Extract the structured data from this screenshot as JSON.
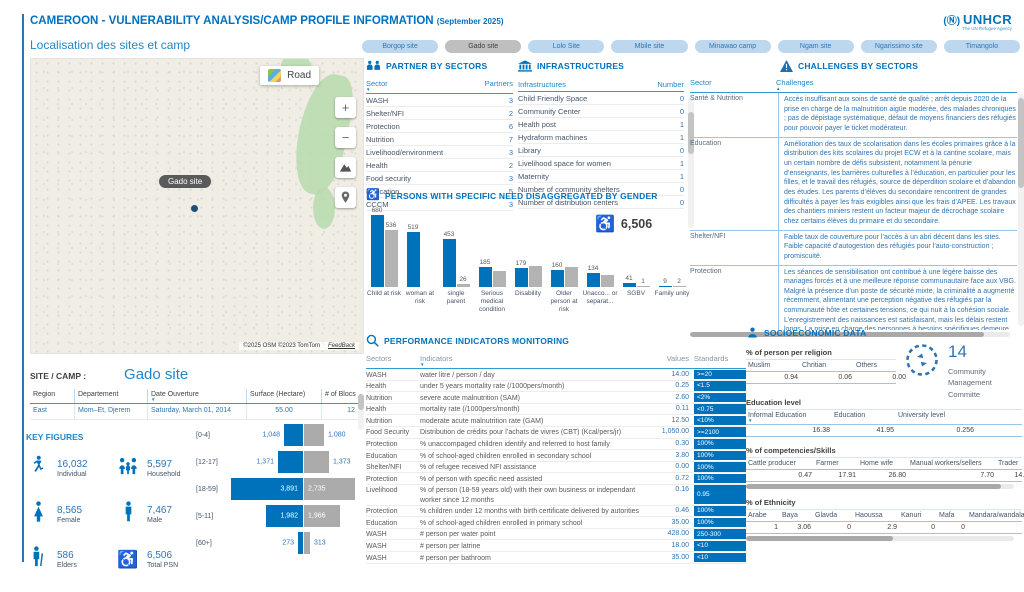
{
  "header": {
    "title": "CAMEROON - VULNERABILITY ANALYSIS/CAMP PROFILE INFORMATION",
    "subtitle": "(September 2025)",
    "logo_emblem": "(Ⓝ)",
    "logo_text": "UNHCR",
    "logo_tagline": "The UN Refugee Agency"
  },
  "loc_title": "Localisation des sites et camp",
  "tabs": {
    "active_index": 1,
    "items": [
      "Borgop site",
      "Gado site",
      "Lolo Site",
      "Mbile site",
      "Minawao camp",
      "Ngam site",
      "Ngarissimo site",
      "Timangolo"
    ]
  },
  "map": {
    "layer_label": "Road",
    "site_label": "Gado site",
    "attribution": "©2025 OSM ©2023 TomTom",
    "feedback": "FeedBack",
    "zoom_in": "+",
    "zoom_out": "−"
  },
  "partners": {
    "title": "PARTNER BY SECTORS",
    "col_sector": "Sector",
    "col_partners": "Partners",
    "rows": [
      [
        "WASH",
        "3"
      ],
      [
        "Shelter/NFI",
        "2"
      ],
      [
        "Protection",
        "6"
      ],
      [
        "Nutrition",
        "7"
      ],
      [
        "Livelihood/environment",
        "3"
      ],
      [
        "Health",
        "2"
      ],
      [
        "Food security",
        "3"
      ],
      [
        "Education",
        "5"
      ],
      [
        "CCCM",
        "3"
      ]
    ]
  },
  "infra": {
    "title": "INFRASTRUCTURES",
    "col_name": "Infrastructures",
    "col_number": "Number",
    "rows": [
      [
        "Child Friendly Space",
        "0"
      ],
      [
        "Community Center",
        "0"
      ],
      [
        "Health post",
        "1"
      ],
      [
        "Hydraform machines",
        "1"
      ],
      [
        "Library",
        "0"
      ],
      [
        "Livelihood space for women",
        "1"
      ],
      [
        "Maternity",
        "1"
      ],
      [
        "Number of community shelters",
        "0"
      ],
      [
        "Number of distribution centers",
        "0"
      ]
    ]
  },
  "challenges": {
    "title": "CHALLENGES BY SECTORS",
    "col_sector": "Sector",
    "col_challenges": "Challenges",
    "rows": [
      {
        "sector": "Santé & Nutrition",
        "text": "Accès insuffisant aux soins de santé de qualité ; arrêt depuis 2020 de la prise en charge de la malnutrition aigüe modérée, des malades chroniques ; pas de dépistage systématique, défaut de moyens financiers des réfugiés pour pouvoir payer le ticket modérateur."
      },
      {
        "sector": "Education",
        "text": "Amélioration des taux de scolarisation dans les écoles primaires grâce à la distribution des kits scolaires du projet ECW et à la cantine scolaire, mais un certain nombre de défis subsistent, notamment la pénurie d’enseignants, les barrières culturelles à l’éducation, en particulier pour les filles, et le travail des réfugiés, source de déperdition scolaire et d’abandon des études. Les parents d’élèves du secondaire rencontrent de grandes difficultés à payer les frais exigibles ainsi que les frais d’APEE. Les travaux des chantiers miniers restent un facteur majeur de décrochage scolaire chez certains élèves du primaire et du secondaire."
      },
      {
        "sector": "Shelter/NFI",
        "text": "Faible taux de couverture pour l’accès à un abri décent dans les sites.\nFaible capacité d’autogestion des réfugiés pour l’auto-construction ; promiscuité."
      },
      {
        "sector": "Protection",
        "text": "Les séances de sensibilisation ont contribué à une légère baisse des mariages forcés et à une meilleure réponse communautaire face aux VBG. Malgré la présence d’un poste de sécurité mixte, la criminalité a augmenté récemment, alimentant une perception négative des réfugiés par la communauté hôte et certaines tensions, ce qui nuit à la cohésion sociale.\nL’enregistrement des naissances est satisfaisant, mais les délais restent longs. La prise en charge des personnes à besoins spécifiques demeure limitée faute de ressources suffisantes.\nL’identification des cas de réinstallation se poursuit, tandis que les..."
      }
    ]
  },
  "psn": {
    "title": "PERSONS WITH SPECIFIC NEED DISAGGREGATED BY GENDER",
    "total": "6,506"
  },
  "chart_data": [
    {
      "type": "bar",
      "title": "PERSONS WITH SPECIFIC NEED DISAGGREGATED BY GENDER",
      "categories": [
        "Child at risk",
        "woman at risk",
        "single parent",
        "Serious medical condition",
        "Disability",
        "Older person at risk",
        "Unacco... or separat...",
        "SGBV",
        "Family unity"
      ],
      "series": [
        {
          "name": "blue",
          "color": "#0072BC",
          "values": [
            680,
            519,
            453,
            185,
            179,
            160,
            134,
            41,
            9
          ],
          "labels": [
            "680",
            "519",
            "453",
            "185",
            "179",
            "160",
            "134",
            "41",
            "9"
          ]
        },
        {
          "name": "gray",
          "color": "#B3B3B3",
          "values": [
            536,
            0,
            26,
            150,
            200,
            185,
            110,
            1,
            2
          ],
          "labels": [
            "536",
            "",
            "26",
            "",
            "",
            "",
            "",
            "1",
            "2"
          ]
        }
      ],
      "ylim": [
        0,
        680
      ],
      "annotations": {
        "total": "6,506"
      },
      "legend": "none",
      "grid": false
    },
    {
      "type": "bar",
      "title": "Population by age group",
      "categories": [
        "[0-4]",
        "[12-17]",
        "[18-59]",
        "[5-11]",
        "[60+]"
      ],
      "series": [
        {
          "name": "left-blue",
          "color": "#0072BC",
          "values": [
            1048,
            1371,
            3891,
            1982,
            273
          ],
          "labels": [
            "1,048",
            "1,371",
            "3,891",
            "1,982",
            "273"
          ]
        },
        {
          "name": "right-gray",
          "color": "#ABABAB",
          "values": [
            1080,
            1373,
            2735,
            1966,
            313
          ],
          "labels": [
            "1,080",
            "1,373",
            "2,735",
            "1,966",
            "313"
          ]
        }
      ],
      "layout": "pyramid",
      "grid": false,
      "legend": "none"
    }
  ],
  "perf": {
    "title": "PERFORMANCE INDICATORS MONITORING",
    "headers": [
      "Sectors",
      "Indicators",
      "Values",
      "Standards"
    ],
    "rows": [
      [
        "WASH",
        "water litre / person / day",
        "14.00",
        ">=20"
      ],
      [
        "Health",
        "under 5 years mortality rate (/1000pers/month)",
        "0.25",
        "<1.5"
      ],
      [
        "Nutrition",
        "severe acute malnutrition (SAM)",
        "2.60",
        "<2%"
      ],
      [
        "Health",
        "mortality rate (/1000pers/month)",
        "0.11",
        "<0.75"
      ],
      [
        "Nutrition",
        "moderate acute malnutrition rate (GAM)",
        "12.50",
        "<10%"
      ],
      [
        "Food Security",
        "Distribution de crédits pour l’achats de vivres (CBT) (Kcal/pers/jr)",
        "1,050.00",
        ">=2100"
      ],
      [
        "Protection",
        "% unaccompaged children identify and referred to host family",
        "0.30",
        "100%"
      ],
      [
        "Education",
        "% of school-aged children enrolled in secondary school",
        "3.80",
        "100%"
      ],
      [
        "Shelter/NFI",
        "% of refugee received NFI assistance",
        "0.00",
        "100%"
      ],
      [
        "Protection",
        "% of person with specific need assisted",
        "0.72",
        "100%"
      ],
      [
        "Livelihood",
        "% of person (18-59 years old) with their own business or independant worker since 12 months",
        "0.16",
        "0.95"
      ],
      [
        "Protection",
        "% children under 12 months with birth certificate delivered by autorities",
        "0.46",
        "100%"
      ],
      [
        "Education",
        "% of school-aged children enrolled in primary school",
        "35.00",
        "100%"
      ],
      [
        "WASH",
        "# person per water point",
        "428.00",
        "250-300"
      ],
      [
        "WASH",
        "# person per latrine",
        "18.00",
        "<10"
      ],
      [
        "WASH",
        "# person per bathroom",
        "35.00",
        "<10"
      ]
    ]
  },
  "socio": {
    "title": "SOCIOECONOMIC DATA",
    "religion": {
      "label": "% of person per religion",
      "headers": [
        "Muslim",
        "Chritian",
        "Others"
      ],
      "values": [
        "0.94",
        "0.06",
        "0.00"
      ]
    },
    "committee": {
      "value": "14",
      "lines": [
        "Community",
        "Management",
        "Committe"
      ]
    },
    "education": {
      "label": "Education level",
      "headers": [
        "Informal Education",
        "Education",
        "University level"
      ],
      "values": [
        "16.38",
        "41.95",
        "0.256"
      ]
    },
    "skills": {
      "label": "% of competencies/Skills",
      "headers": [
        "Cattle producer",
        "Farmer",
        "Home wife",
        "Manual workers/sellers",
        "Trader"
      ],
      "values": [
        "0.47",
        "17.91",
        "26.80",
        "7.70",
        "14.30"
      ]
    },
    "ethnicity": {
      "label": "% of Ethnicity",
      "headers": [
        "Arabe",
        "Baya",
        "Glavda",
        "Haoussa",
        "Kanuri",
        "Mafa",
        "Mandara/wandala"
      ],
      "values": [
        "1",
        "3.06",
        "0",
        "2.9",
        "0",
        "0",
        "0"
      ]
    }
  },
  "site": {
    "label": "SITE / CAMP :",
    "name": "Gado site",
    "headers": [
      "Region",
      "Departement",
      "Date Ouverture",
      "Surface (Hectare)",
      "# of Blocs"
    ],
    "values": [
      "East",
      "Mom–Et, Djerem",
      "Saturday, March 01, 2014",
      "55.00",
      "12"
    ]
  },
  "key": {
    "title": "KEY FIGURES",
    "items": [
      {
        "value": "16,032",
        "label": "Individual",
        "icon": "person-running-icon"
      },
      {
        "value": "5,597",
        "label": "Household",
        "icon": "family-icon"
      },
      {
        "value": "8,565",
        "label": "Female",
        "icon": "female-icon"
      },
      {
        "value": "7,467",
        "label": "Male",
        "icon": "male-icon"
      },
      {
        "value": "586",
        "label": "Elders",
        "icon": "elder-icon"
      },
      {
        "value": "6,506",
        "label": "Total PSN",
        "icon": "wheelchair-icon"
      }
    ]
  },
  "colors": {
    "accent": "#0072BC",
    "tab_blue": "#BDD7EE",
    "tab_active": "#BFBFBF",
    "bar_gray": "#B3B3B3",
    "chip": "#0072BC"
  }
}
